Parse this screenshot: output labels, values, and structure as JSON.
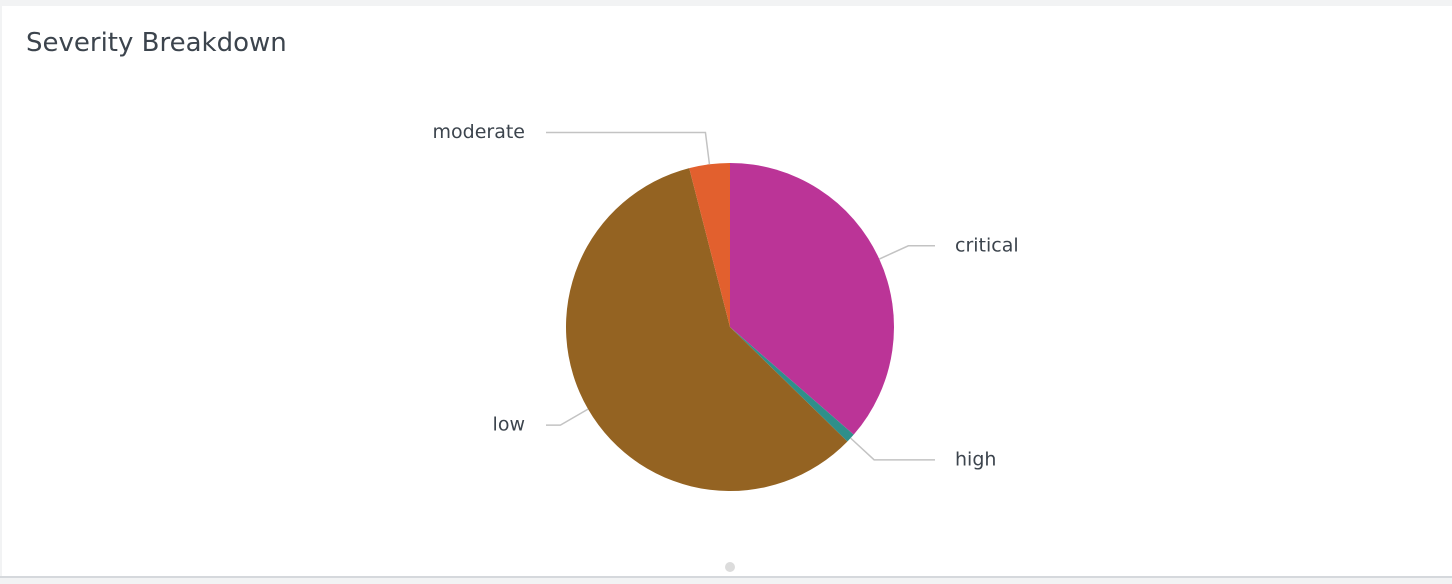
{
  "chart_data": {
    "type": "pie",
    "title": "Severity Breakdown",
    "categories": [
      "critical",
      "high",
      "low",
      "moderate"
    ],
    "values": [
      36.4,
      0.9,
      58.7,
      4.0
    ],
    "colors": [
      "#bb3497",
      "#2f8f8a",
      "#946322",
      "#e2602e"
    ]
  }
}
